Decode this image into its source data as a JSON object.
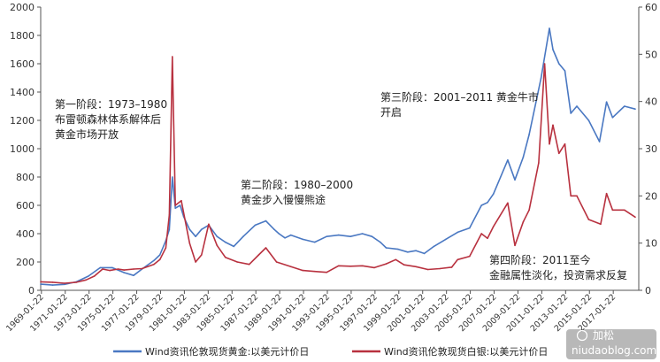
{
  "chart_data": {
    "type": "line",
    "title": "",
    "xlabel": "",
    "ylabel_left": "",
    "ylabel_right": "",
    "ylim_left": [
      0,
      2000
    ],
    "ylim_right": [
      0,
      60
    ],
    "xlim": [
      1969.0,
      2019.2
    ],
    "grid": false,
    "legend_position": "bottom",
    "y_ticks_left": [
      "0",
      "200",
      "400",
      "600",
      "800",
      "1000",
      "1200",
      "1400",
      "1600",
      "1800",
      "2000"
    ],
    "y_ticks_right": [
      "0",
      "10",
      "20",
      "30",
      "40",
      "50",
      "60"
    ],
    "x_ticks": [
      "1969-01-22",
      "1971-01-22",
      "1973-01-22",
      "1975-01-22",
      "1977-01-22",
      "1979-01-22",
      "1981-01-22",
      "1983-01-22",
      "1985-01-22",
      "1987-01-22",
      "1989-01-22",
      "1991-01-22",
      "1993-01-22",
      "1995-01-22",
      "1997-01-22",
      "1999-01-22",
      "2001-01-22",
      "2003-01-22",
      "2005-01-22",
      "2007-01-22",
      "2009-01-22",
      "2011-01-22",
      "2013-01-22",
      "2015-01-22",
      "2017-01-22"
    ],
    "series": [
      {
        "name": "Wind资讯伦敦现货黄金:以美元计价日",
        "axis": "left",
        "color": "#4a78c2",
        "x": [
          1969.0,
          1970.0,
          1971.0,
          1972.0,
          1973.0,
          1974.0,
          1975.0,
          1976.0,
          1976.8,
          1977.5,
          1978.5,
          1979.0,
          1979.5,
          1979.8,
          1980.05,
          1980.3,
          1980.7,
          1981.0,
          1981.5,
          1982.0,
          1982.5,
          1983.1,
          1983.8,
          1984.5,
          1985.2,
          1986.0,
          1987.0,
          1987.9,
          1988.6,
          1989.0,
          1989.5,
          1990.0,
          1991.0,
          1992.0,
          1993.0,
          1994.0,
          1995.0,
          1996.0,
          1996.8,
          1997.5,
          1998.0,
          1999.0,
          1999.8,
          2000.5,
          2001.2,
          2002.0,
          2003.0,
          2004.0,
          2005.0,
          2006.0,
          2006.5,
          2007.0,
          2008.2,
          2008.8,
          2009.5,
          2010.0,
          2011.0,
          2011.7,
          2012.0,
          2012.5,
          2013.0,
          2013.5,
          2014.0,
          2015.0,
          2015.9,
          2016.5,
          2017.0,
          2018.0,
          2018.9
        ],
        "values": [
          43,
          37,
          42,
          60,
          100,
          160,
          160,
          125,
          105,
          150,
          210,
          250,
          350,
          430,
          800,
          580,
          600,
          520,
          430,
          380,
          430,
          460,
          380,
          340,
          310,
          380,
          460,
          490,
          430,
          400,
          370,
          390,
          360,
          340,
          380,
          390,
          380,
          400,
          380,
          340,
          300,
          290,
          270,
          280,
          260,
          310,
          360,
          410,
          440,
          600,
          620,
          680,
          920,
          780,
          940,
          1100,
          1500,
          1850,
          1700,
          1600,
          1550,
          1250,
          1300,
          1200,
          1050,
          1330,
          1220,
          1300,
          1280
        ]
      },
      {
        "name": "Wind资讯伦敦现货白银:以美元计价日",
        "axis": "right",
        "color": "#b8313f",
        "x": [
          1969.0,
          1970.0,
          1971.0,
          1972.0,
          1972.8,
          1973.5,
          1974.2,
          1974.8,
          1975.5,
          1976.0,
          1976.8,
          1977.5,
          1978.5,
          1979.0,
          1979.5,
          1979.8,
          1980.05,
          1980.3,
          1980.8,
          1981.5,
          1982.0,
          1982.5,
          1983.1,
          1983.8,
          1984.5,
          1985.5,
          1986.5,
          1987.3,
          1987.9,
          1988.8,
          1990.0,
          1991.0,
          1992.0,
          1993.0,
          1994.0,
          1995.0,
          1996.0,
          1997.0,
          1998.0,
          1998.8,
          1999.5,
          2000.5,
          2001.5,
          2002.5,
          2003.5,
          2004.0,
          2005.0,
          2006.0,
          2006.5,
          2007.0,
          2008.2,
          2008.8,
          2009.5,
          2010.0,
          2010.8,
          2011.3,
          2011.7,
          2012.0,
          2012.5,
          2013.0,
          2013.5,
          2014.0,
          2015.0,
          2016.0,
          2016.5,
          2017.0,
          2018.0,
          2018.9
        ],
        "values": [
          1.8,
          1.7,
          1.5,
          1.7,
          2.2,
          3.0,
          4.5,
          4.2,
          4.5,
          4.3,
          4.5,
          4.6,
          5.5,
          6.5,
          9.0,
          16.0,
          49.5,
          18.0,
          19.0,
          10.0,
          6.0,
          7.5,
          14.0,
          9.5,
          7.0,
          6.0,
          5.5,
          7.5,
          9.0,
          6.0,
          5.0,
          4.2,
          4.0,
          3.8,
          5.2,
          5.1,
          5.2,
          4.8,
          5.6,
          6.5,
          5.4,
          5.0,
          4.4,
          4.6,
          4.9,
          6.5,
          7.2,
          12.0,
          11.0,
          13.5,
          18.5,
          9.5,
          14.5,
          17.0,
          27.0,
          48.0,
          31.0,
          35.0,
          29.0,
          31.0,
          20.0,
          20.0,
          15.0,
          14.0,
          20.5,
          17.0,
          17.0,
          15.5
        ]
      }
    ],
    "annotations": [
      {
        "lines": [
          "第一阶段：1973–1980",
          "布雷顿森林体系解体后",
          "黄金市场开放"
        ]
      },
      {
        "lines": [
          "第二阶段：1980–2000",
          "黄金步入慢慢熊途"
        ]
      },
      {
        "lines": [
          "第三阶段：2001–2011 黄金牛市",
          "开启"
        ]
      },
      {
        "lines": [
          "第四阶段：2011至今",
          "金融属性淡化，投资需求反复"
        ]
      }
    ]
  },
  "watermark": {
    "brand": "加松",
    "url": "niudaoblog.com"
  }
}
